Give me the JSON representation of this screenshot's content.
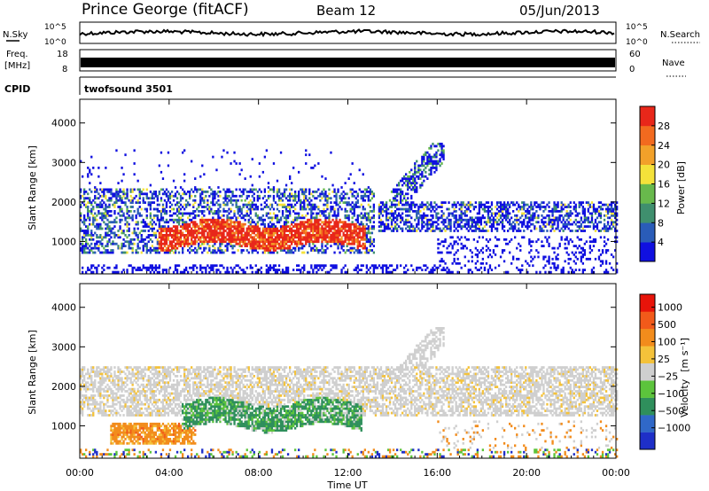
{
  "header": {
    "station": "Prince George (fitACF)",
    "beam": "Beam 12",
    "date": "05/Jun/2013"
  },
  "top_panels": {
    "nsky": {
      "label": "N.Sky",
      "tick_top": "10^5",
      "tick_bottom": "10^0"
    },
    "nsearch": {
      "label": "N.Search",
      "tick_top": "10^5",
      "tick_bottom": "10^0"
    },
    "freq": {
      "label_line1": "Freq.",
      "label_line2": "[MHz]",
      "tick_top": "18",
      "tick_bottom": "8"
    },
    "nave": {
      "label": "Nave",
      "tick_top": "60",
      "tick_bottom": "0"
    },
    "cpid": {
      "label": "CPID",
      "value": "twofsound 3501"
    }
  },
  "chart_data": [
    {
      "type": "heatmap",
      "name": "power_panel",
      "ylabel": "Slant Range [km]",
      "ylim": [
        180,
        4600
      ],
      "yticks": [
        "1000",
        "2000",
        "3000",
        "4000"
      ],
      "xlim": [
        "00:00",
        "24:00"
      ],
      "colorbar": {
        "label": "Power [dB]",
        "ticks": [
          "4",
          "8",
          "12",
          "16",
          "20",
          "24",
          "28"
        ],
        "colors": [
          "#1010e0",
          "#2a5cb8",
          "#3f8f6e",
          "#68b94c",
          "#f4e23a",
          "#f2a12a",
          "#f26a1f",
          "#e8271a"
        ]
      },
      "regions": [
        {
          "t0": 0.0,
          "t1": 13.0,
          "r0": 650,
          "r1": 2300,
          "level": "mixed blue/green/yellow"
        },
        {
          "t0": 3.0,
          "t1": 12.8,
          "r0": 850,
          "r1": 1550,
          "level": "red (24-30 dB)"
        },
        {
          "t0": 13.3,
          "t1": 24.0,
          "r0": 1200,
          "r1": 2000,
          "level": "blue/green"
        },
        {
          "t0": 14.0,
          "t1": 16.2,
          "r0": 1800,
          "r1": 3500,
          "level": "blue/green"
        }
      ]
    },
    {
      "type": "heatmap",
      "name": "velocity_panel",
      "ylabel": "Slant Range [km]",
      "ylim": [
        180,
        4600
      ],
      "yticks": [
        "1000",
        "2000",
        "3000",
        "4000"
      ],
      "xlim": [
        "00:00",
        "24:00"
      ],
      "xticks": [
        "00:00",
        "04:00",
        "08:00",
        "12:00",
        "16:00",
        "20:00",
        "00:00"
      ],
      "xlabel": "Time UT",
      "colorbar": {
        "label_main": "Velocity",
        "label_units": "[m s⁻¹]",
        "ticks": [
          "1000",
          "500",
          "100",
          "25",
          "−25",
          "−100",
          "−500",
          "−1000"
        ],
        "colors": [
          "#1e2fc8",
          "#3068c8",
          "#2f8f5c",
          "#5cc43c",
          "#cfcfcf",
          "#f4c23a",
          "#f28c1c",
          "#f25a1a",
          "#e8140a"
        ]
      },
      "regions": [
        {
          "t0": 0.0,
          "t1": 24.0,
          "r0": 1200,
          "r1": 2500,
          "level": "grey (ground scatter)"
        },
        {
          "t0": 4.5,
          "t1": 12.5,
          "r0": 850,
          "r1": 1600,
          "level": "green (+25 to +500)"
        },
        {
          "t0": 1.5,
          "t1": 5.0,
          "r0": 500,
          "r1": 1000,
          "level": "orange (-100 to -500)"
        }
      ]
    }
  ],
  "x_axis": {
    "ticks": [
      "00:00",
      "04:00",
      "08:00",
      "12:00",
      "16:00",
      "20:00",
      "00:00"
    ],
    "label": "Time UT"
  }
}
